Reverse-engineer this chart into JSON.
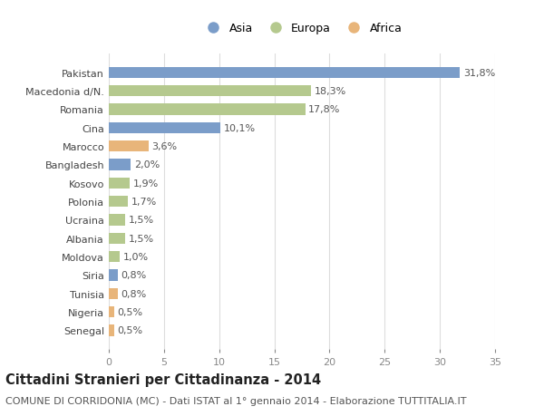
{
  "categories": [
    "Pakistan",
    "Macedonia d/N.",
    "Romania",
    "Cina",
    "Marocco",
    "Bangladesh",
    "Kosovo",
    "Polonia",
    "Ucraina",
    "Albania",
    "Moldova",
    "Siria",
    "Tunisia",
    "Nigeria",
    "Senegal"
  ],
  "values": [
    31.8,
    18.3,
    17.8,
    10.1,
    3.6,
    2.0,
    1.9,
    1.7,
    1.5,
    1.5,
    1.0,
    0.8,
    0.8,
    0.5,
    0.5
  ],
  "labels": [
    "31,8%",
    "18,3%",
    "17,8%",
    "10,1%",
    "3,6%",
    "2,0%",
    "1,9%",
    "1,7%",
    "1,5%",
    "1,5%",
    "1,0%",
    "0,8%",
    "0,8%",
    "0,5%",
    "0,5%"
  ],
  "continents": [
    "Asia",
    "Europa",
    "Europa",
    "Asia",
    "Africa",
    "Asia",
    "Europa",
    "Europa",
    "Europa",
    "Europa",
    "Europa",
    "Asia",
    "Africa",
    "Africa",
    "Africa"
  ],
  "colors": {
    "Asia": "#7b9dc9",
    "Europa": "#b5c98e",
    "Africa": "#e8b57a"
  },
  "title": "Cittadini Stranieri per Cittadinanza - 2014",
  "subtitle": "COMUNE DI CORRIDONIA (MC) - Dati ISTAT al 1° gennaio 2014 - Elaborazione TUTTITALIA.IT",
  "xlim": [
    0,
    35
  ],
  "xticks": [
    0,
    5,
    10,
    15,
    20,
    25,
    30,
    35
  ],
  "background_color": "#ffffff",
  "grid_color": "#dddddd",
  "bar_height": 0.6,
  "title_fontsize": 10.5,
  "subtitle_fontsize": 8,
  "label_fontsize": 8,
  "tick_fontsize": 8,
  "legend_fontsize": 9
}
